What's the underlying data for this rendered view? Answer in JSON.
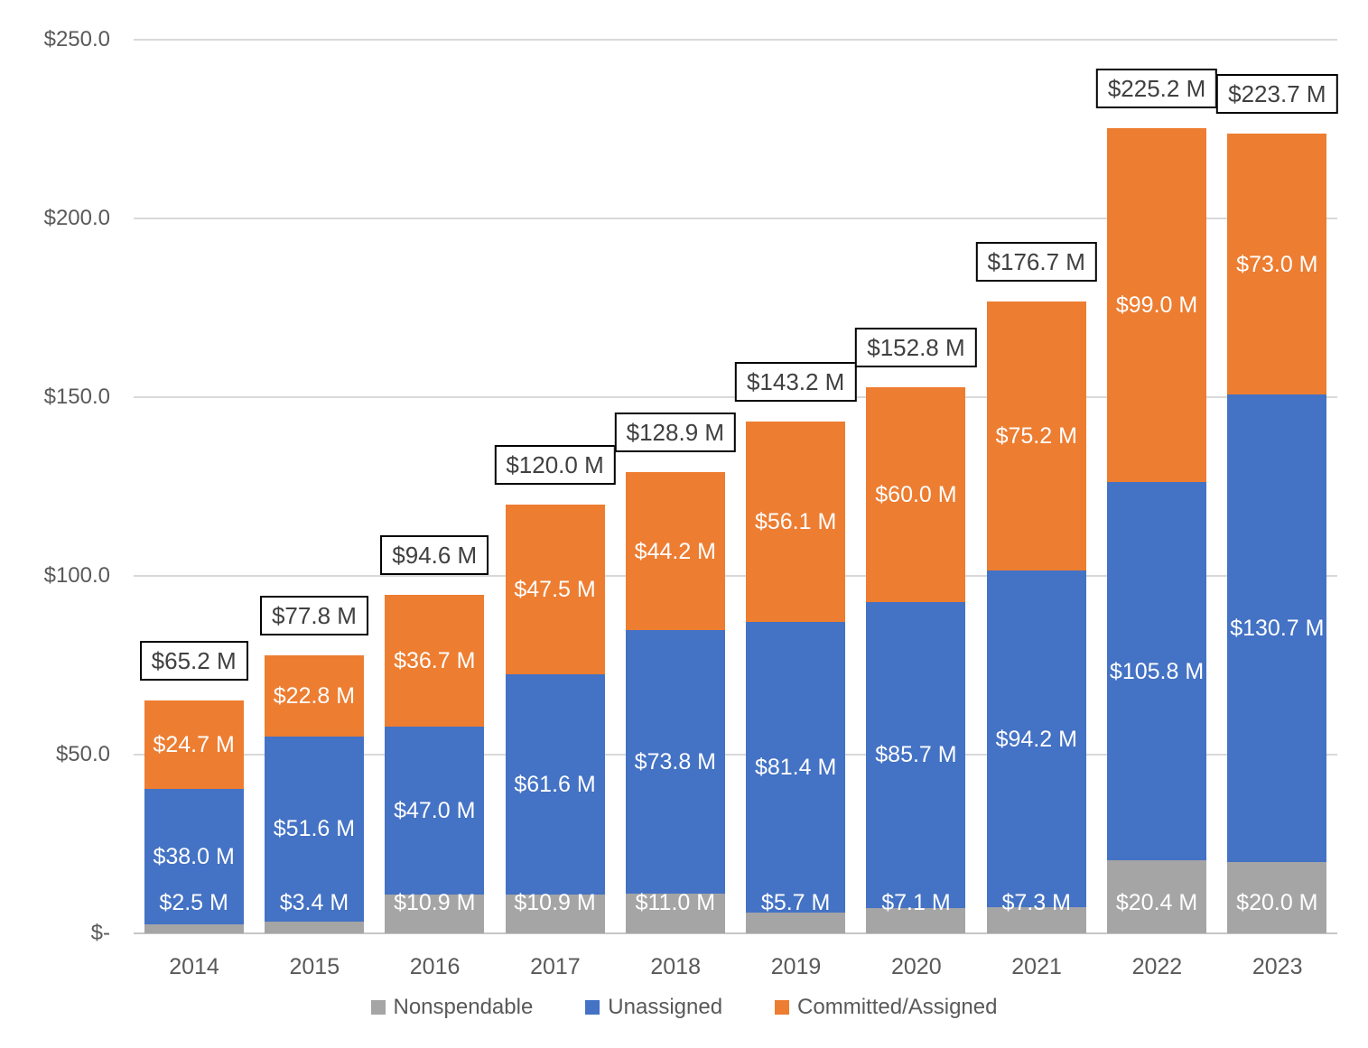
{
  "chart_data": {
    "type": "bar",
    "stacked": true,
    "title": "",
    "xlabel": "",
    "ylabel": "",
    "categories": [
      "2014",
      "2015",
      "2016",
      "2017",
      "2018",
      "2019",
      "2020",
      "2021",
      "2022",
      "2023"
    ],
    "series": [
      {
        "name": "Nonspendable",
        "color": "#A5A5A5",
        "values": [
          2.5,
          3.4,
          10.9,
          10.9,
          11.0,
          5.7,
          7.1,
          7.3,
          20.4,
          20.0
        ],
        "labels": [
          "$2.5 M",
          "$3.4 M",
          "$10.9 M",
          "$10.9 M",
          "$11.0 M",
          "$5.7 M",
          "$7.1 M",
          "$7.3 M",
          "$20.4 M",
          "$20.0 M"
        ]
      },
      {
        "name": "Unassigned",
        "color": "#4472C4",
        "values": [
          38.0,
          51.6,
          47.0,
          61.6,
          73.8,
          81.4,
          85.7,
          94.2,
          105.8,
          130.7
        ],
        "labels": [
          "$38.0 M",
          "$51.6 M",
          "$47.0 M",
          "$61.6 M",
          "$73.8 M",
          "$81.4 M",
          "$85.7 M",
          "$94.2 M",
          "$105.8 M",
          "$130.7 M"
        ]
      },
      {
        "name": "Committed/Assigned",
        "color": "#ED7D31",
        "values": [
          24.7,
          22.8,
          36.7,
          47.5,
          44.2,
          56.1,
          60.0,
          75.2,
          99.0,
          73.0
        ],
        "labels": [
          "$24.7 M",
          "$22.8 M",
          "$36.7 M",
          "$47.5 M",
          "$44.2 M",
          "$56.1 M",
          "$60.0 M",
          "$75.2 M",
          "$99.0 M",
          "$73.0 M"
        ]
      }
    ],
    "totals": {
      "values": [
        65.2,
        77.8,
        94.6,
        120.0,
        128.9,
        143.2,
        152.8,
        176.7,
        225.2,
        223.7
      ],
      "labels": [
        "$65.2 M",
        "$77.8 M",
        "$94.6 M",
        "$120.0 M",
        "$128.9 M",
        "$143.2 M",
        "$152.8 M",
        "$176.7 M",
        "$225.2 M",
        "$223.7 M"
      ]
    },
    "y_axis": {
      "ylim": [
        0,
        250
      ],
      "grid": true,
      "ticks": [
        {
          "value": 0,
          "label": "$-"
        },
        {
          "value": 50,
          "label": "$50.0"
        },
        {
          "value": 100,
          "label": "$100.0"
        },
        {
          "value": 150,
          "label": "$150.0"
        },
        {
          "value": 200,
          "label": "$200.0"
        },
        {
          "value": 250,
          "label": "$250.0"
        }
      ]
    },
    "legend": {
      "position": "bottom",
      "entries": [
        "Nonspendable",
        "Unassigned",
        "Committed/Assigned"
      ]
    }
  },
  "colors": {
    "background": "#FFFFFF",
    "gridline": "#D9D9D9",
    "axis_line": "#C6C6C6",
    "axis_text": "#595959",
    "legend_text": "#595959",
    "segment_label_text": "#FFFFFF",
    "total_text": "#404040",
    "total_box_border": "#000000",
    "total_box_fill": "#FFFFFF"
  }
}
